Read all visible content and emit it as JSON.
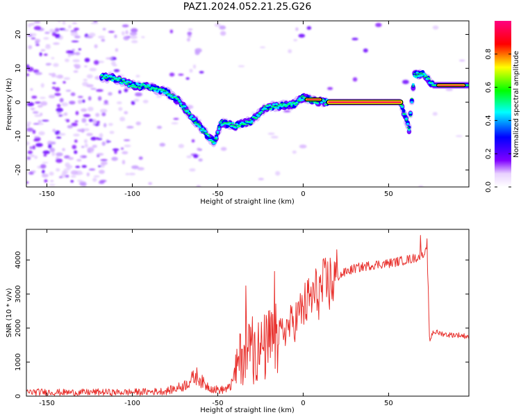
{
  "figure_title": "PAZ1.2024.052.21.25.G26",
  "chart_data": [
    {
      "type": "heatmap",
      "title": "",
      "xlabel": "Height of straight line (km)",
      "ylabel": "Frequency (Hz)",
      "xlim": [
        -162,
        97
      ],
      "ylim": [
        -25,
        24
      ],
      "xticks": [
        -150,
        -100,
        -50,
        0,
        50
      ],
      "yticks": [
        -20,
        -10,
        0,
        10,
        20
      ],
      "colorbar": {
        "label": "Normalized spectral amplitude",
        "range": [
          0.0,
          1.0
        ],
        "ticks": [
          0.0,
          0.2,
          0.4,
          0.6,
          0.8
        ],
        "tick_labels": [
          "0.0",
          "0.2",
          "0.4",
          "0.6",
          "0.8"
        ],
        "colormap": [
          "#ffffff",
          "#8000ff",
          "#0000ff",
          "#00ffff",
          "#00ff00",
          "#ffff00",
          "#ff0000",
          "#ff0080"
        ]
      },
      "ridge_trace": [
        {
          "x": -118,
          "y": 7.5
        },
        {
          "x": -110,
          "y": 7
        },
        {
          "x": -100,
          "y": 5
        },
        {
          "x": -90,
          "y": 4.5
        },
        {
          "x": -80,
          "y": 3
        },
        {
          "x": -72,
          "y": 0
        },
        {
          "x": -66,
          "y": -4
        },
        {
          "x": -60,
          "y": -7.5
        },
        {
          "x": -52,
          "y": -12
        },
        {
          "x": -48,
          "y": -6
        },
        {
          "x": -40,
          "y": -7
        },
        {
          "x": -30,
          "y": -5.5
        },
        {
          "x": -22,
          "y": -1.5
        },
        {
          "x": -12,
          "y": -1
        },
        {
          "x": -5,
          "y": -0.5
        },
        {
          "x": 0,
          "y": 1.5
        },
        {
          "x": 5,
          "y": 0.5
        },
        {
          "x": 14,
          "y": 0
        },
        {
          "x": 57,
          "y": 0
        },
        {
          "x": 62,
          "y": -8
        },
        {
          "x": 65,
          "y": 8
        },
        {
          "x": 70,
          "y": 8.5
        },
        {
          "x": 76,
          "y": 5
        },
        {
          "x": 97,
          "y": 5
        }
      ],
      "grid": false
    },
    {
      "type": "line",
      "title": "",
      "xlabel": "Height of straight line (km)",
      "ylabel": "SNR (10 * v/v)",
      "xlim": [
        -162,
        97
      ],
      "ylim": [
        0,
        4900
      ],
      "xticks": [
        -150,
        -100,
        -50,
        0,
        50
      ],
      "yticks": [
        0,
        1000,
        2000,
        3000,
        4000
      ],
      "series_color": "#e8302c",
      "series": [
        {
          "name": "",
          "x": [
            -162,
            -150,
            -140,
            -130,
            -120,
            -110,
            -100,
            -90,
            -80,
            -75,
            -70,
            -65,
            -62,
            -58,
            -52,
            -48,
            -42,
            -40,
            -38,
            -35,
            -30,
            -25,
            -20,
            -15,
            -10,
            -5,
            0,
            5,
            10,
            15,
            20,
            25,
            30,
            35,
            40,
            45,
            50,
            55,
            60,
            65,
            68,
            70,
            72,
            73,
            74,
            76,
            80,
            85,
            90,
            97
          ],
          "y": [
            120,
            120,
            110,
            110,
            120,
            110,
            120,
            130,
            150,
            220,
            300,
            500,
            600,
            350,
            200,
            180,
            250,
            600,
            1000,
            1300,
            1400,
            1300,
            1500,
            1700,
            2000,
            2200,
            2600,
            2900,
            3100,
            3300,
            3500,
            3650,
            3750,
            3800,
            3850,
            3880,
            3900,
            3950,
            4000,
            4050,
            4100,
            4200,
            4300,
            3600,
            1600,
            1900,
            1850,
            1800,
            1800,
            1750
          ]
        }
      ],
      "grid": false
    }
  ]
}
